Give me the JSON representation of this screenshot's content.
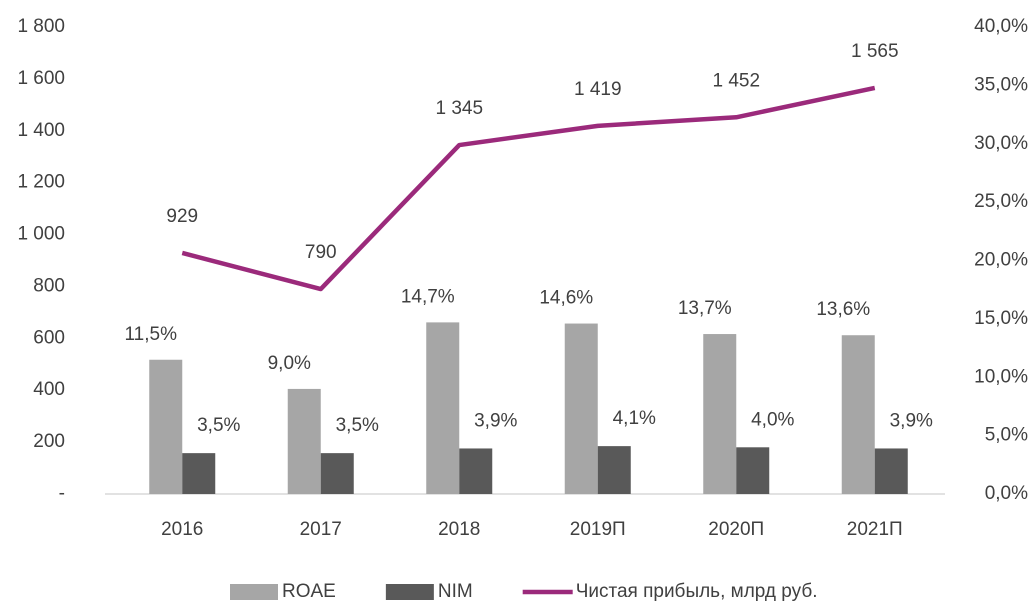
{
  "chart_data": {
    "type": "bar_line",
    "categories": [
      "2016",
      "2017",
      "2018",
      "2019П",
      "2020П",
      "2021П"
    ],
    "series": [
      {
        "name": "ROAE",
        "type": "bar",
        "axis": "y2",
        "color": "#a6a6a6",
        "values": [
          11.5,
          9.0,
          14.7,
          14.6,
          13.7,
          13.6
        ],
        "value_labels": [
          "11,5%",
          "9,0%",
          "14,7%",
          "14,6%",
          "13,7%",
          "13,6%"
        ]
      },
      {
        "name": "NIM",
        "type": "bar",
        "axis": "y2",
        "color": "#595959",
        "values": [
          3.5,
          3.5,
          3.9,
          4.1,
          4.0,
          3.9
        ],
        "value_labels": [
          "3,5%",
          "3,5%",
          "3,9%",
          "4,1%",
          "4,0%",
          "3,9%"
        ]
      },
      {
        "name": "Чистая прибыль, млрд руб.",
        "type": "line",
        "axis": "y",
        "color": "#9b2a7b",
        "values": [
          929,
          790,
          1345,
          1419,
          1452,
          1565
        ],
        "value_labels": [
          "929",
          "790",
          "1 345",
          "1 419",
          "1 452",
          "1 565"
        ]
      }
    ],
    "ylim": [
      0,
      1800
    ],
    "yticks": [
      {
        "value": 0,
        "label": "-"
      },
      200,
      400,
      600,
      800,
      {
        "value": 1000,
        "label": "1 000"
      },
      {
        "value": 1200,
        "label": "1 200"
      },
      {
        "value": 1400,
        "label": "1 400"
      },
      {
        "value": 1600,
        "label": "1 600"
      },
      {
        "value": 1800,
        "label": "1 800"
      }
    ],
    "y2lim": [
      0,
      40
    ],
    "y2ticks": [
      {
        "value": 0,
        "label": "0,0%"
      },
      {
        "value": 5,
        "label": "5,0%"
      },
      {
        "value": 10,
        "label": "10,0%"
      },
      {
        "value": 15,
        "label": "15,0%"
      },
      {
        "value": 20,
        "label": "20,0%"
      },
      {
        "value": 25,
        "label": "25,0%"
      },
      {
        "value": 30,
        "label": "30,0%"
      },
      {
        "value": 35,
        "label": "35,0%"
      },
      {
        "value": 40,
        "label": "40,0%"
      }
    ],
    "legend": "bottom"
  }
}
